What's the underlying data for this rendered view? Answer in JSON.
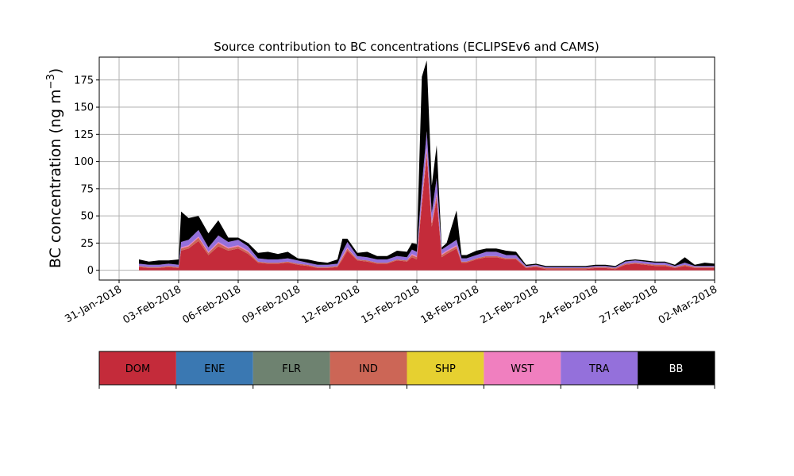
{
  "chart_data": {
    "type": "area",
    "stacked": true,
    "title": "Source contribution to BC concentrations (ECLIPSEv6 and CAMS)",
    "ylabel": "BC concentration (ng m⁻³)",
    "xlabel": "",
    "ylim": [
      -9,
      196
    ],
    "xlim": [
      "2018-01-30",
      "2018-03-02"
    ],
    "grid": true,
    "y_ticks": [
      "0",
      "25",
      "50",
      "75",
      "100",
      "125",
      "150",
      "175"
    ],
    "x_ticks": [
      "31-Jan-2018",
      "03-Feb-2018",
      "06-Feb-2018",
      "09-Feb-2018",
      "12-Feb-2018",
      "15-Feb-2018",
      "18-Feb-2018",
      "21-Feb-2018",
      "24-Feb-2018",
      "27-Feb-2018",
      "02-Mar-2018"
    ],
    "legend": {
      "placement": "below",
      "entries": [
        {
          "label": "DOM",
          "color": "#c42b3a"
        },
        {
          "label": "ENE",
          "color": "#3a78b2"
        },
        {
          "label": "FLR",
          "color": "#6e8270"
        },
        {
          "label": "IND",
          "color": "#cc6656"
        },
        {
          "label": "SHP",
          "color": "#e6d030"
        },
        {
          "label": "WST",
          "color": "#f07fbf"
        },
        {
          "label": "TRA",
          "color": "#9470db"
        },
        {
          "label": "BB",
          "color": "#000000"
        }
      ]
    },
    "x": [
      "2018-02-01",
      "2018-02-01 12:00",
      "2018-02-02",
      "2018-02-02 12:00",
      "2018-02-03",
      "2018-02-03 03:00",
      "2018-02-03 12:00",
      "2018-02-04",
      "2018-02-04 12:00",
      "2018-02-05",
      "2018-02-05 12:00",
      "2018-02-06",
      "2018-02-06 12:00",
      "2018-02-07",
      "2018-02-07 12:00",
      "2018-02-08",
      "2018-02-08 12:00",
      "2018-02-09",
      "2018-02-09 12:00",
      "2018-02-10",
      "2018-02-10 12:00",
      "2018-02-11",
      "2018-02-11 06:00",
      "2018-02-11 12:00",
      "2018-02-12",
      "2018-02-12 12:00",
      "2018-02-13",
      "2018-02-13 12:00",
      "2018-02-14",
      "2018-02-14 12:00",
      "2018-02-14 18:00",
      "2018-02-15",
      "2018-02-15 06:00",
      "2018-02-15 12:00",
      "2018-02-15 18:00",
      "2018-02-16",
      "2018-02-16 06:00",
      "2018-02-16 12:00",
      "2018-02-17",
      "2018-02-17 06:00",
      "2018-02-17 12:00",
      "2018-02-18",
      "2018-02-18 12:00",
      "2018-02-19",
      "2018-02-19 12:00",
      "2018-02-20",
      "2018-02-20 12:00",
      "2018-02-21",
      "2018-02-21 12:00",
      "2018-02-22",
      "2018-02-22 12:00",
      "2018-02-23",
      "2018-02-23 12:00",
      "2018-02-24",
      "2018-02-24 12:00",
      "2018-02-25",
      "2018-02-25 12:00",
      "2018-02-26",
      "2018-02-26 12:00",
      "2018-02-27",
      "2018-02-27 12:00",
      "2018-02-28",
      "2018-02-28 12:00",
      "2018-03-01",
      "2018-03-01 12:00",
      "2018-03-02"
    ],
    "series": [
      {
        "name": "DOM",
        "values": [
          3,
          2,
          2,
          3,
          2,
          18,
          20,
          27,
          14,
          22,
          18,
          20,
          15,
          7,
          6,
          6,
          7,
          5,
          4,
          2,
          2,
          3,
          10,
          18,
          9,
          8,
          6,
          6,
          9,
          8,
          12,
          10,
          60,
          105,
          40,
          65,
          12,
          15,
          20,
          7,
          7,
          10,
          12,
          12,
          10,
          10,
          2,
          3,
          1,
          1,
          1,
          1,
          1,
          2,
          2,
          1,
          5,
          6,
          5,
          4,
          4,
          2,
          4,
          2,
          2,
          2
        ]
      },
      {
        "name": "ENE",
        "values": [
          0,
          0,
          0,
          0,
          0,
          0,
          0,
          0,
          0,
          0,
          0,
          0,
          0,
          0,
          0,
          0,
          0,
          0,
          0,
          0,
          0,
          0,
          0,
          0,
          0,
          0,
          0,
          0,
          0,
          0,
          0,
          0,
          0,
          0,
          0,
          0,
          0,
          0,
          0,
          0,
          0,
          0,
          0,
          0,
          0,
          0,
          0,
          0,
          0,
          0,
          0,
          0,
          0,
          0,
          0,
          0,
          0,
          0,
          0,
          0,
          0,
          0,
          0,
          0,
          0,
          0
        ]
      },
      {
        "name": "FLR",
        "values": [
          0,
          0,
          0,
          0,
          0,
          0,
          0,
          0,
          0,
          0,
          0,
          0,
          0,
          0,
          0,
          0,
          0,
          0,
          0,
          0,
          0,
          0,
          0,
          0,
          0,
          0,
          0,
          0,
          0,
          0,
          0,
          0,
          0,
          0,
          0,
          0,
          0,
          0,
          0,
          0,
          0,
          0,
          0,
          0,
          0,
          0,
          0,
          0,
          0,
          0,
          0,
          0,
          0,
          0,
          0,
          0,
          0,
          0,
          0,
          0,
          0,
          0,
          0,
          0,
          0,
          0
        ]
      },
      {
        "name": "IND",
        "values": [
          1,
          1,
          1,
          1,
          1,
          2,
          2,
          3,
          2,
          3,
          2,
          2,
          2,
          1,
          1,
          1,
          1,
          1,
          1,
          1,
          1,
          1,
          2,
          2,
          1,
          1,
          1,
          1,
          1,
          1,
          2,
          2,
          4,
          5,
          3,
          4,
          2,
          2,
          2,
          1,
          1,
          1,
          1,
          1,
          1,
          1,
          1,
          1,
          1,
          1,
          1,
          1,
          1,
          1,
          1,
          1,
          1,
          1,
          1,
          1,
          1,
          1,
          1,
          1,
          1,
          1
        ]
      },
      {
        "name": "SHP",
        "values": [
          0,
          0,
          0,
          0,
          0,
          0,
          0,
          0,
          0,
          0,
          0,
          0,
          0,
          0,
          0,
          0,
          0,
          0,
          0,
          0,
          0,
          0,
          0,
          0,
          0,
          0,
          0,
          0,
          0,
          0,
          0,
          0,
          0,
          0,
          0,
          0,
          0,
          0,
          0,
          0,
          0,
          0,
          0,
          0,
          0,
          0,
          0,
          0,
          0,
          0,
          0,
          0,
          0,
          0,
          0,
          0,
          0,
          0,
          0,
          0,
          0,
          0,
          0,
          0,
          0,
          0
        ]
      },
      {
        "name": "WST",
        "values": [
          0,
          0,
          0,
          0,
          0,
          1,
          1,
          1,
          1,
          1,
          1,
          1,
          1,
          0,
          0,
          0,
          0,
          0,
          0,
          0,
          0,
          0,
          1,
          1,
          0,
          0,
          0,
          0,
          0,
          0,
          1,
          1,
          2,
          3,
          2,
          2,
          1,
          1,
          1,
          0,
          0,
          0,
          0,
          0,
          0,
          0,
          0,
          0,
          0,
          0,
          0,
          0,
          0,
          0,
          0,
          0,
          0,
          0,
          0,
          0,
          0,
          0,
          0,
          0,
          0,
          0
        ]
      },
      {
        "name": "TRA",
        "values": [
          2,
          2,
          2,
          2,
          2,
          5,
          5,
          6,
          4,
          6,
          5,
          5,
          4,
          3,
          3,
          3,
          3,
          3,
          2,
          2,
          2,
          2,
          4,
          5,
          3,
          3,
          3,
          3,
          3,
          3,
          4,
          4,
          12,
          15,
          8,
          14,
          4,
          4,
          5,
          3,
          3,
          3,
          4,
          4,
          3,
          3,
          1,
          1,
          1,
          1,
          1,
          1,
          1,
          1,
          1,
          1,
          2,
          2,
          2,
          2,
          2,
          1,
          2,
          1,
          1,
          1
        ]
      },
      {
        "name": "BB",
        "values": [
          4,
          3,
          4,
          3,
          5,
          28,
          20,
          13,
          13,
          14,
          4,
          2,
          3,
          5,
          7,
          5,
          6,
          2,
          3,
          3,
          2,
          4,
          12,
          3,
          3,
          5,
          3,
          3,
          5,
          5,
          6,
          7,
          100,
          65,
          25,
          30,
          2,
          3,
          27,
          3,
          3,
          4,
          3,
          3,
          4,
          3,
          1,
          1,
          1,
          1,
          1,
          1,
          1,
          1,
          1,
          1,
          1,
          1,
          1,
          1,
          1,
          1,
          5,
          1,
          3,
          2
        ]
      }
    ]
  }
}
